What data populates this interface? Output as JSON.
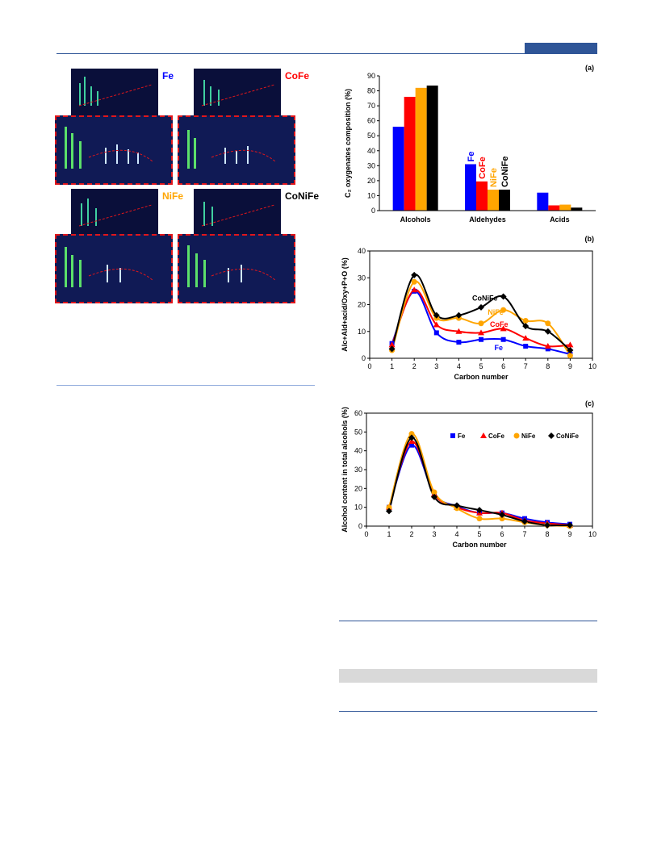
{
  "panels": {
    "fe": "Fe",
    "cofe": "CoFe",
    "nife": "NiFe",
    "conife": "CoNiFe"
  },
  "colors": {
    "fe": "#0000ff",
    "cofe": "#ff0000",
    "nife": "#ffa500",
    "conife": "#000000"
  },
  "chart_data": [
    {
      "id": "a",
      "panel_label": "(a)",
      "type": "bar",
      "categories": [
        "Alcohols",
        "Aldehydes",
        "Acids"
      ],
      "series": [
        {
          "name": "Fe",
          "values": [
            56,
            31,
            12
          ]
        },
        {
          "name": "CoFe",
          "values": [
            76,
            19.5,
            3.5
          ]
        },
        {
          "name": "NiFe",
          "values": [
            82,
            14,
            4
          ]
        },
        {
          "name": "CoNiFe",
          "values": [
            83.5,
            14,
            2
          ]
        }
      ],
      "ylabel": "C₂ oxygenates composition (%)",
      "ylim": [
        0,
        90
      ],
      "yticks": [
        0,
        10,
        20,
        30,
        40,
        50,
        60,
        70,
        80,
        90
      ]
    },
    {
      "id": "b",
      "panel_label": "(b)",
      "type": "scatter",
      "xlabel": "Carbon number",
      "ylabel": "Alc+Ald+acid/Oxy+P+O (%)",
      "xlim": [
        0,
        10
      ],
      "ylim": [
        0,
        40
      ],
      "xticks": [
        0,
        1,
        2,
        3,
        4,
        5,
        6,
        7,
        8,
        9,
        10
      ],
      "yticks": [
        0,
        10,
        20,
        30,
        40
      ],
      "series": [
        {
          "name": "Fe",
          "x": [
            1,
            2,
            3,
            4,
            5,
            6,
            7,
            8,
            9
          ],
          "y": [
            5.5,
            25,
            9.5,
            6,
            7,
            7,
            4.5,
            3.5,
            1.5
          ]
        },
        {
          "name": "CoFe",
          "x": [
            1,
            2,
            3,
            4,
            5,
            6,
            7,
            8,
            9
          ],
          "y": [
            5,
            25.5,
            12.5,
            10,
            9.5,
            11,
            7.5,
            4.5,
            5
          ]
        },
        {
          "name": "NiFe",
          "x": [
            1,
            2,
            3,
            4,
            5,
            6,
            7,
            8,
            9
          ],
          "y": [
            3,
            28.5,
            15,
            15,
            13,
            18,
            14,
            13,
            1
          ]
        },
        {
          "name": "CoNiFe",
          "x": [
            1,
            2,
            3,
            4,
            5,
            6,
            7,
            8,
            9
          ],
          "y": [
            3.5,
            31,
            16,
            16,
            19,
            23,
            12,
            10,
            3
          ]
        }
      ]
    },
    {
      "id": "c",
      "panel_label": "(c)",
      "type": "scatter",
      "xlabel": "Carbon number",
      "ylabel": "Alcohol content in total alcohols (%)",
      "xlim": [
        0,
        10
      ],
      "ylim": [
        0,
        60
      ],
      "xticks": [
        0,
        1,
        2,
        3,
        4,
        5,
        6,
        7,
        8,
        9,
        10
      ],
      "yticks": [
        0,
        10,
        20,
        30,
        40,
        50,
        60
      ],
      "legend": "top-right",
      "series": [
        {
          "name": "Fe",
          "x": [
            1,
            2,
            3,
            4,
            5,
            6,
            7,
            8,
            9
          ],
          "y": [
            10,
            43,
            17,
            10.5,
            7,
            7,
            4,
            2,
            1
          ]
        },
        {
          "name": "CoFe",
          "x": [
            1,
            2,
            3,
            4,
            5,
            6,
            7,
            8,
            9
          ],
          "y": [
            10,
            45,
            17,
            10,
            7,
            7,
            3,
            1.5,
            0.5
          ]
        },
        {
          "name": "NiFe",
          "x": [
            1,
            2,
            3,
            4,
            5,
            6,
            7,
            8,
            9
          ],
          "y": [
            10,
            49,
            18,
            9.5,
            4,
            4,
            2,
            0.5,
            0
          ]
        },
        {
          "name": "CoNiFe",
          "x": [
            1,
            2,
            3,
            4,
            5,
            6,
            7,
            8,
            9
          ],
          "y": [
            8,
            47,
            15.5,
            11,
            8.5,
            6,
            2.5,
            0.5,
            0.5
          ]
        }
      ]
    }
  ]
}
